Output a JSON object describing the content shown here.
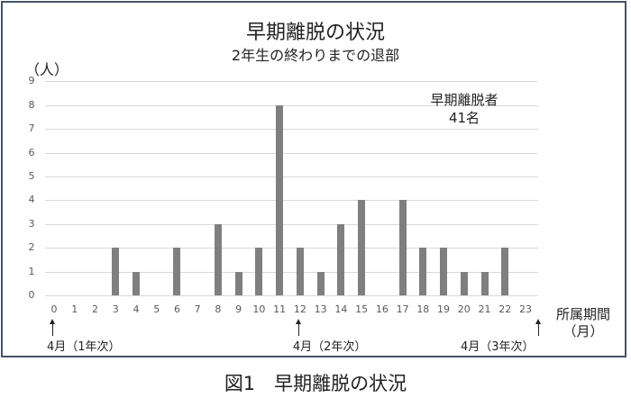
{
  "chart_data": {
    "type": "bar",
    "title": "早期離脱の状況",
    "subtitle": "2年生の終わりまでの退部",
    "xlabel": "所属期間（月）",
    "xlabel_line1": "所属期間",
    "xlabel_line2": "（月）",
    "ylabel": "（人）",
    "ylim": [
      0,
      9
    ],
    "yticks": [
      "0",
      "1",
      "2",
      "3",
      "4",
      "5",
      "6",
      "7",
      "8",
      "9"
    ],
    "grid": true,
    "categories": [
      "0",
      "1",
      "2",
      "3",
      "4",
      "5",
      "6",
      "7",
      "8",
      "9",
      "10",
      "11",
      "12",
      "13",
      "14",
      "15",
      "16",
      "17",
      "18",
      "19",
      "20",
      "21",
      "22",
      "23"
    ],
    "values": [
      0,
      0,
      0,
      2,
      1,
      0,
      2,
      0,
      3,
      1,
      2,
      8,
      2,
      1,
      3,
      4,
      0,
      4,
      2,
      2,
      1,
      1,
      2,
      0
    ],
    "bar_color": "#7f7f7f",
    "annotation": {
      "line1": "早期離脱者",
      "line2": "41名"
    },
    "markers": [
      {
        "x": 0,
        "label": "4月（1年次）"
      },
      {
        "x": 12,
        "label": "4月（2年次）"
      },
      {
        "x": 23,
        "label": "4月（3年次）"
      }
    ]
  },
  "caption": "図1　早期離脱の状況"
}
